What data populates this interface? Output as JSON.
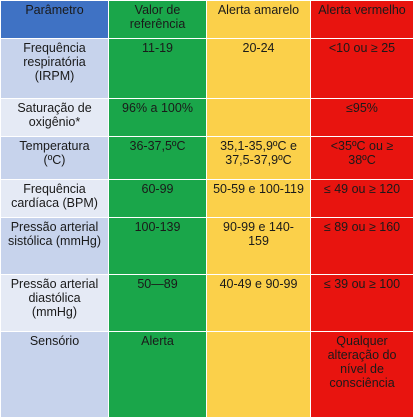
{
  "header": {
    "parametro": "Parâmetro",
    "referencia": "Valor de referência",
    "amarelo": "Alerta amarelo",
    "vermelho": "Alerta vermelho"
  },
  "rows": [
    {
      "param": "Frequência respiratória (IRPM)",
      "ref": "11-19",
      "amarelo": "20-24",
      "vermelho": "<10 ou ≥ 25"
    },
    {
      "param": "Saturação de oxigênio*",
      "ref": "96% a 100%",
      "amarelo": "",
      "vermelho": "≤95%"
    },
    {
      "param": "Temperatura (ºC)",
      "ref": "36-37,5ºC",
      "amarelo": "35,1-35,9ºC e 37,5-37,9ºC",
      "vermelho": "<35ºC ou ≥ 38ºC"
    },
    {
      "param": "Frequência cardíaca (BPM)",
      "ref": "60-99",
      "amarelo": "50-59 e 100-119",
      "vermelho": "≤ 49 ou ≥ 120"
    },
    {
      "param": "Pressão arterial sistólica (mmHg)",
      "ref": "100-139",
      "amarelo": "90-99 e 140-159",
      "vermelho": "≤ 89 ou ≥ 160"
    },
    {
      "param": "Pressão arterial diastólica (mmHg)",
      "ref": "50—89",
      "amarelo": "40-49 e 90-99",
      "vermelho": "≤ 39 ou ≥ 100"
    },
    {
      "param": "Sensório",
      "ref": "Alerta",
      "amarelo": "",
      "vermelho": "Qualquer alteração do nível de consciência"
    }
  ],
  "colors": {
    "header_blue": "#3f72c4",
    "green": "#1aa64a",
    "yellow": "#fbd04a",
    "red": "#e8140f",
    "param_dark": "#c7d3ec",
    "param_light": "#e5eaf5"
  }
}
